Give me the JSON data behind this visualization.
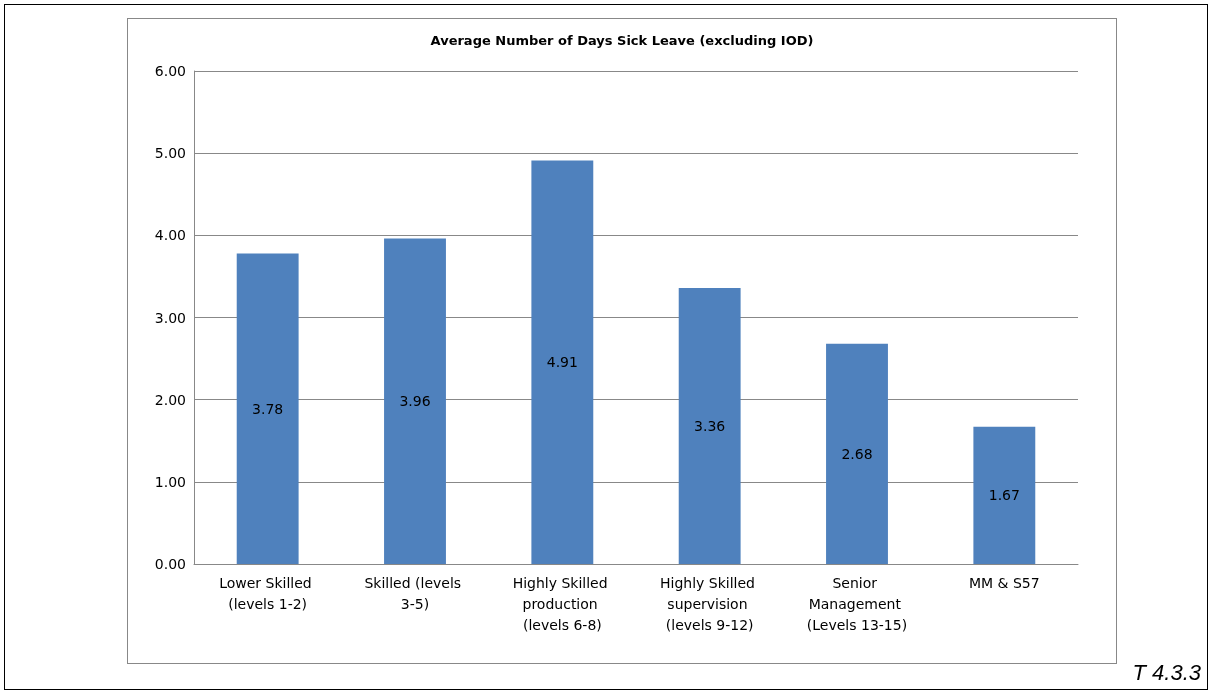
{
  "chart_data": {
    "type": "bar",
    "title": "Average Number of Days Sick Leave (excluding IOD)",
    "categories": [
      "Lower Skilled (levels 1-2)",
      "Skilled (levels 3-5)",
      "Highly Skilled production (levels 6-8)",
      "Highly Skilled supervision (levels 9-12)",
      "Senior Management (Levels 13-15)",
      "MM & S57"
    ],
    "values": [
      3.78,
      3.96,
      4.91,
      3.36,
      2.68,
      1.67
    ],
    "color": "#4f81bd",
    "ylim": [
      0,
      6
    ],
    "yticks": [
      {
        "value": 0,
        "label": "0.00"
      },
      {
        "value": 1,
        "label": "1.00"
      },
      {
        "value": 2,
        "label": "2.00"
      },
      {
        "value": 3,
        "label": "3.00"
      },
      {
        "value": 4,
        "label": "4.00"
      },
      {
        "value": 5,
        "label": "5.00"
      },
      {
        "value": 6,
        "label": "6.00"
      }
    ],
    "grid": "y",
    "data_labels": true,
    "annotations": [
      "T 4.3.3"
    ]
  }
}
